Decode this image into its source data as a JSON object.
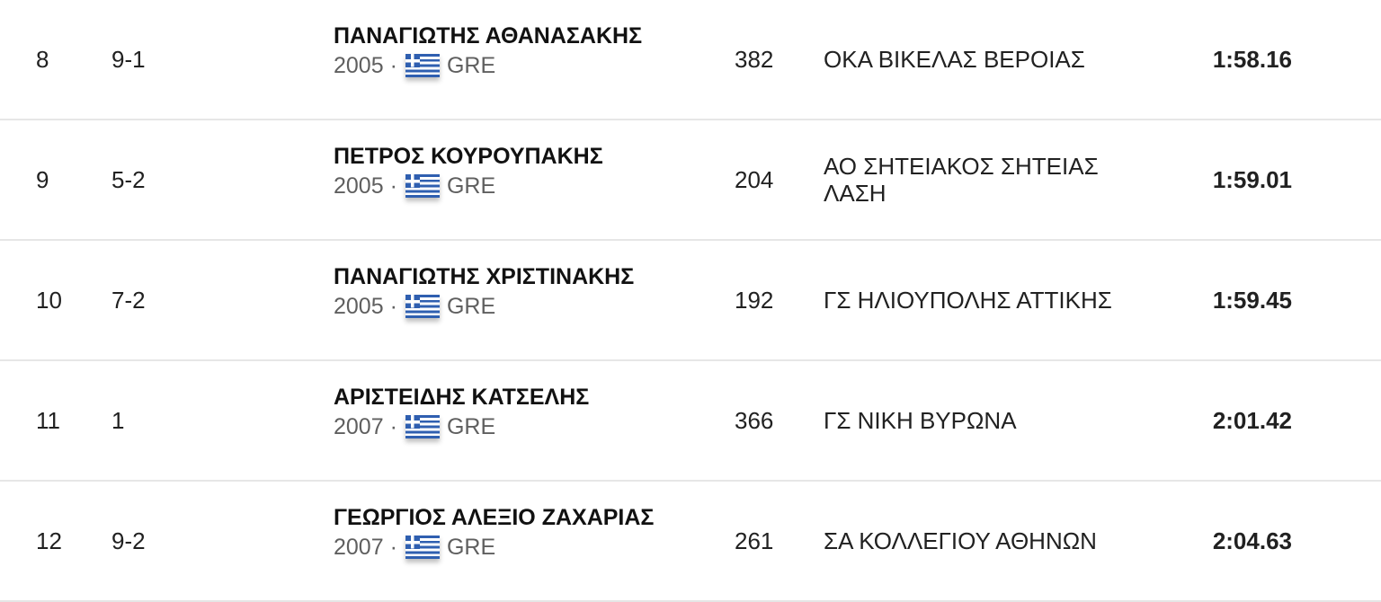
{
  "rows": [
    {
      "rank": "8",
      "heat": "9-1",
      "name": "ΠΑΝΑΓΙΩΤΗΣ ΑΘΑΝΑΣΑΚΗΣ",
      "year": "2005",
      "sep": "·",
      "country": "GRE",
      "bib": "382",
      "club": "ΟΚΑ ΒΙΚΕΛΑΣ ΒΕΡΟΙΑΣ",
      "time": "1:58.16"
    },
    {
      "rank": "9",
      "heat": "5-2",
      "name": "ΠΕΤΡΟΣ ΚΟΥΡΟΥΠΑΚΗΣ",
      "year": "2005",
      "sep": "·",
      "country": "GRE",
      "bib": "204",
      "club": "ΑΟ ΣΗΤΕΙΑΚΟΣ ΣΗΤΕΙΑΣ ΛΑΣΗ",
      "time": "1:59.01"
    },
    {
      "rank": "10",
      "heat": "7-2",
      "name": "ΠΑΝΑΓΙΩΤΗΣ ΧΡΙΣΤΙΝΑΚΗΣ",
      "year": "2005",
      "sep": "·",
      "country": "GRE",
      "bib": "192",
      "club": "ΓΣ ΗΛΙΟΥΠΟΛΗΣ ΑΤΤΙΚΗΣ",
      "time": "1:59.45"
    },
    {
      "rank": "11",
      "heat": "1",
      "name": "ΑΡΙΣΤΕΙΔΗΣ ΚΑΤΣΕΛΗΣ",
      "year": "2007",
      "sep": "·",
      "country": "GRE",
      "bib": "366",
      "club": "ΓΣ ΝΙΚΗ ΒΥΡΩΝΑ",
      "time": "2:01.42"
    },
    {
      "rank": "12",
      "heat": "9-2",
      "name": "ΓΕΩΡΓΙΟΣ ΑΛΕΞΙΟ ΖΑΧΑΡΙΑΣ",
      "year": "2007",
      "sep": "·",
      "country": "GRE",
      "bib": "261",
      "club": "ΣΑ ΚΟΛΛΕΓΙΟΥ ΑΘΗΝΩΝ",
      "time": "2:04.63"
    }
  ],
  "icons": {
    "flag": "greece-flag-icon"
  },
  "colors": {
    "divider": "#e6e6e6",
    "flag_blue": "#2f5fb0",
    "subtext": "#5f5f5f"
  }
}
